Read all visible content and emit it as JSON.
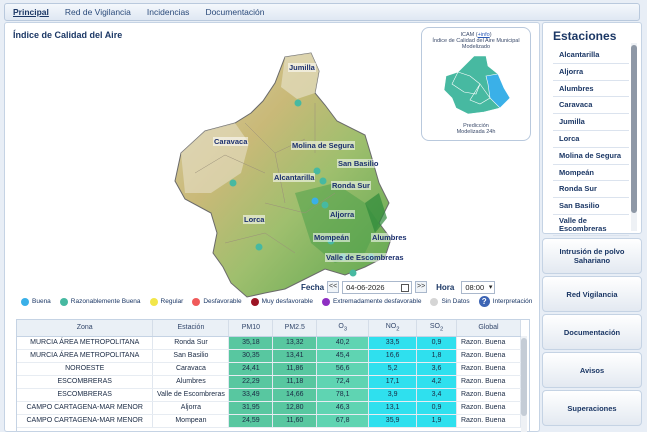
{
  "nav": {
    "items": [
      "Principal",
      "Red de Vigilancia",
      "Incidencias",
      "Documentación"
    ],
    "active": "Principal"
  },
  "main": {
    "title": "Índice de Calidad del Aire"
  },
  "map": {
    "stations": [
      {
        "name": "Jumilla"
      },
      {
        "name": "Caravaca"
      },
      {
        "name": "Molina de Segura"
      },
      {
        "name": "San Basilio"
      },
      {
        "name": "Alcantarilla"
      },
      {
        "name": "Ronda Sur"
      },
      {
        "name": "Lorca"
      },
      {
        "name": "Aljorra"
      },
      {
        "name": "Mompeán"
      },
      {
        "name": "Alumbres"
      },
      {
        "name": "Valle de Escombreras"
      }
    ]
  },
  "inset": {
    "title_line1": "ICAM (",
    "title_link": "+info",
    "title_line1_end": ")",
    "title_line2": "Índice de Calidad del Aire Municipal",
    "title_line3": "Modelizado",
    "foot_line1": "Predicción",
    "foot_line2": "Modelizada 24h"
  },
  "date": {
    "fecha_label": "Fecha",
    "prev": "<<",
    "next": ">>",
    "value": "04-06-2026",
    "hora_label": "Hora",
    "hora_value": "08:00"
  },
  "legend": [
    {
      "label": "Buena",
      "color": "#3ab0e8"
    },
    {
      "label": "Razonablemente Buena",
      "color": "#47b9a1"
    },
    {
      "label": "Regular",
      "color": "#f2e64a"
    },
    {
      "label": "Desfavorable",
      "color": "#f05a5a"
    },
    {
      "label": "Muy desfavorable",
      "color": "#9c1424"
    },
    {
      "label": "Extremadamente desfavorable",
      "color": "#8e2fc2"
    },
    {
      "label": "Sin Datos",
      "color": "#d5d5d5"
    }
  ],
  "legend_help": "Interpretación",
  "table": {
    "headers": {
      "zona": "Zona",
      "estacion": "Estación",
      "pm10": "PM10",
      "pm25": "PM2.5",
      "o3": "O",
      "o3_sub": "3",
      "no2": "NO",
      "no2_sub": "2",
      "so2": "SO",
      "so2_sub": "2",
      "global": "Global"
    },
    "rows": [
      {
        "zona": "MURCIA ÁREA METROPOLITANA",
        "estacion": "Ronda Sur",
        "pm10": "35,18",
        "pm25": "13,32",
        "o3": "40,2",
        "no2": "33,5",
        "so2": "0,9",
        "global": "Razon. Buena"
      },
      {
        "zona": "MURCIA ÁREA METROPOLITANA",
        "estacion": "San Basilio",
        "pm10": "30,35",
        "pm25": "13,41",
        "o3": "45,4",
        "no2": "16,6",
        "so2": "1,8",
        "global": "Razon. Buena"
      },
      {
        "zona": "NOROESTE",
        "estacion": "Caravaca",
        "pm10": "24,41",
        "pm25": "11,86",
        "o3": "56,6",
        "no2": "5,2",
        "so2": "3,6",
        "global": "Razon. Buena"
      },
      {
        "zona": "ESCOMBRERAS",
        "estacion": "Alumbres",
        "pm10": "22,29",
        "pm25": "11,18",
        "o3": "72,4",
        "no2": "17,1",
        "so2": "4,2",
        "global": "Razon. Buena"
      },
      {
        "zona": "ESCOMBRERAS",
        "estacion": "Valle de Escombreras",
        "pm10": "33,49",
        "pm25": "14,66",
        "o3": "78,1",
        "no2": "3,9",
        "so2": "3,4",
        "global": "Razon. Buena"
      },
      {
        "zona": "CAMPO CARTAGENA-MAR MENOR",
        "estacion": "Aljorra",
        "pm10": "31,95",
        "pm25": "12,80",
        "o3": "46,3",
        "no2": "13,1",
        "so2": "0,9",
        "global": "Razon. Buena"
      },
      {
        "zona": "CAMPO CARTAGENA-MAR MENOR",
        "estacion": "Mompean",
        "pm10": "24,59",
        "pm25": "11,60",
        "o3": "67,8",
        "no2": "35,9",
        "so2": "1,9",
        "global": "Razon. Buena"
      }
    ]
  },
  "sidebar": {
    "title": "Estaciones",
    "stations": [
      "Alcantarilla",
      "Aljorra",
      "Alumbres",
      "Caravaca",
      "Jumilla",
      "Lorca",
      "Molina de Segura",
      "Mompeán",
      "Ronda Sur",
      "San Basilio",
      "Valle de Escombreras"
    ],
    "buttons": [
      "Intrusión de polvo Sahariano",
      "Red Vigilancia",
      "Documentación",
      "Avisos",
      "Superaciones"
    ]
  }
}
